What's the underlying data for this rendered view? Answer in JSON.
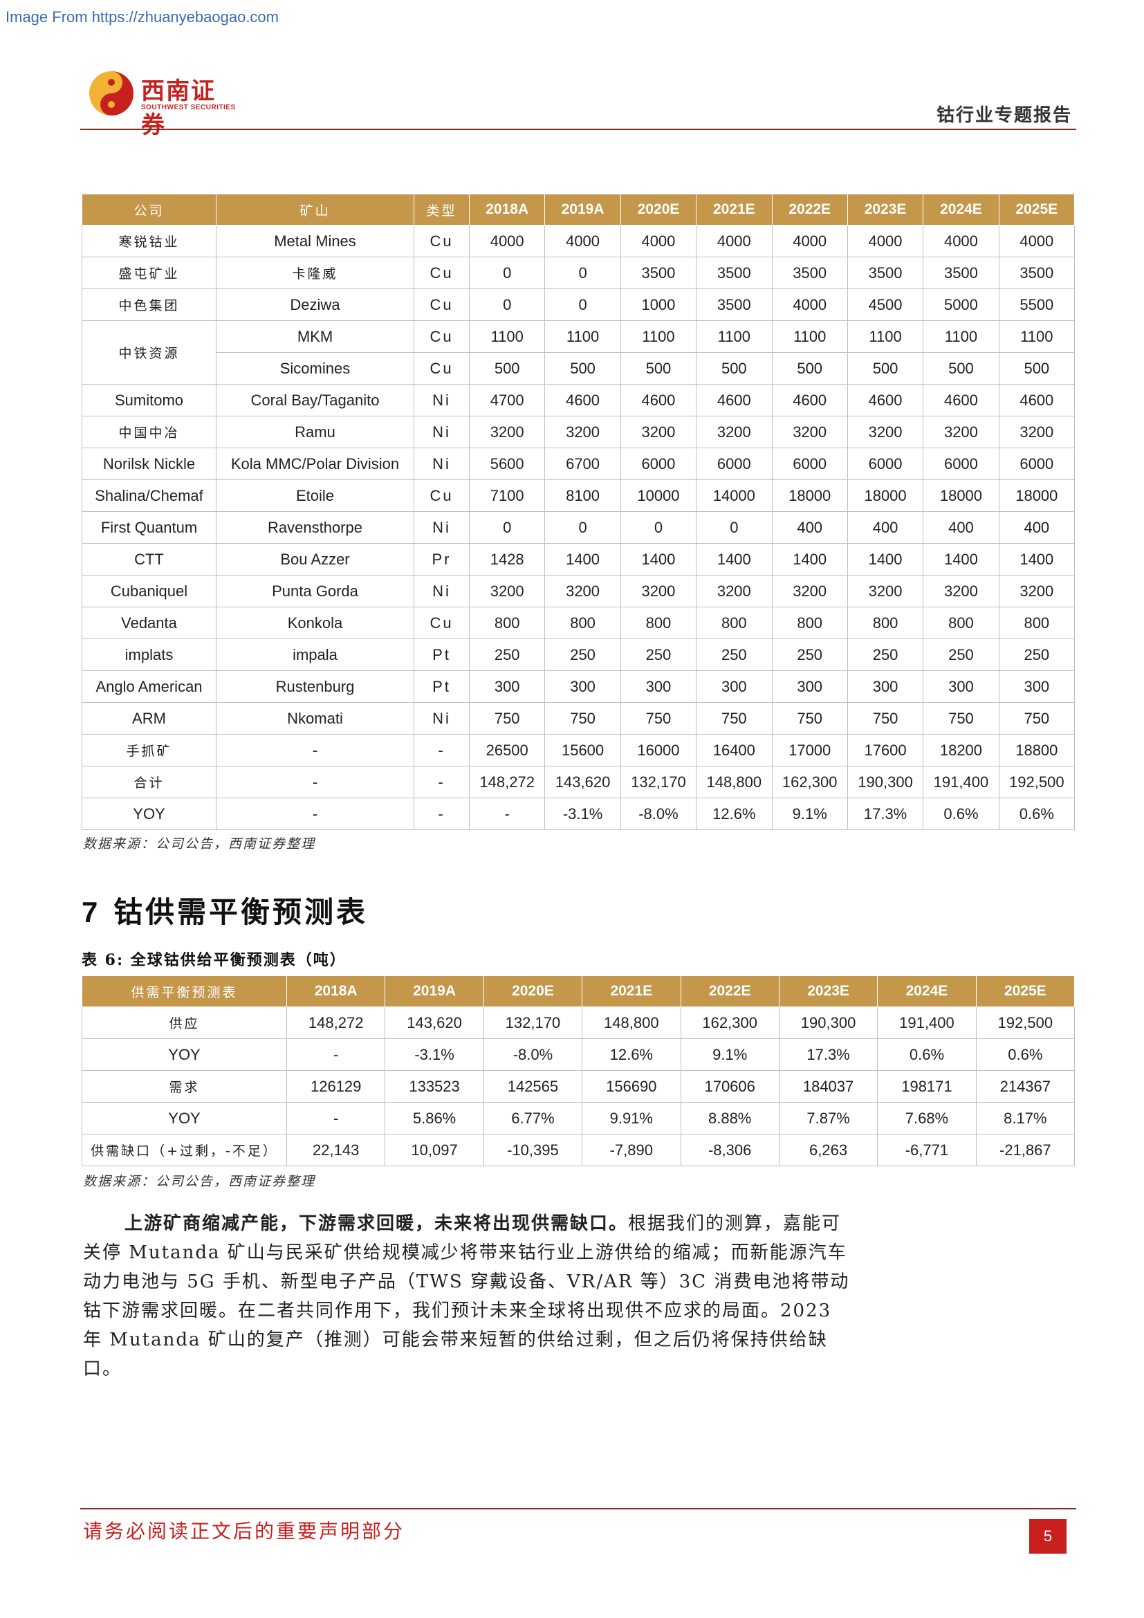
{
  "watermark": "Image From https://zhuanyebaogao.com",
  "header": {
    "logo_cn": "西南证券",
    "logo_en": "SOUTHWEST SECURITIES",
    "report_title": "钴行业专题报告"
  },
  "mine_table": {
    "headers": [
      "公司",
      "矿山",
      "类型",
      "2018A",
      "2019A",
      "2020E",
      "2021E",
      "2022E",
      "2023E",
      "2024E",
      "2025E"
    ],
    "rows": [
      {
        "company": "寒锐钴业",
        "mine": "Metal Mines",
        "type": "Cu",
        "values": [
          "4000",
          "4000",
          "4000",
          "4000",
          "4000",
          "4000",
          "4000",
          "4000"
        ]
      },
      {
        "company": "盛屯矿业",
        "mine": "卡隆威",
        "type": "Cu",
        "values": [
          "0",
          "0",
          "3500",
          "3500",
          "3500",
          "3500",
          "3500",
          "3500"
        ]
      },
      {
        "company": "中色集团",
        "mine": "Deziwa",
        "type": "Cu",
        "values": [
          "0",
          "0",
          "1000",
          "3500",
          "4000",
          "4500",
          "5000",
          "5500"
        ]
      },
      {
        "company": "中铁资源",
        "mine": "MKM",
        "type": "Cu",
        "values": [
          "1100",
          "1100",
          "1100",
          "1100",
          "1100",
          "1100",
          "1100",
          "1100"
        ]
      },
      {
        "company": "",
        "mine": "Sicomines",
        "type": "Cu",
        "values": [
          "500",
          "500",
          "500",
          "500",
          "500",
          "500",
          "500",
          "500"
        ]
      },
      {
        "company": "Sumitomo",
        "mine": "Coral Bay/Taganito",
        "type": "Ni",
        "values": [
          "4700",
          "4600",
          "4600",
          "4600",
          "4600",
          "4600",
          "4600",
          "4600"
        ]
      },
      {
        "company": "中国中冶",
        "mine": "Ramu",
        "type": "Ni",
        "values": [
          "3200",
          "3200",
          "3200",
          "3200",
          "3200",
          "3200",
          "3200",
          "3200"
        ]
      },
      {
        "company": "Norilsk Nickle",
        "mine": "Kola MMC/Polar Division",
        "type": "Ni",
        "values": [
          "5600",
          "6700",
          "6000",
          "6000",
          "6000",
          "6000",
          "6000",
          "6000"
        ]
      },
      {
        "company": "Shalina/Chemaf",
        "mine": "Etoile",
        "type": "Cu",
        "values": [
          "7100",
          "8100",
          "10000",
          "14000",
          "18000",
          "18000",
          "18000",
          "18000"
        ]
      },
      {
        "company": "First Quantum",
        "mine": "Ravensthorpe",
        "type": "Ni",
        "values": [
          "0",
          "0",
          "0",
          "0",
          "400",
          "400",
          "400",
          "400"
        ]
      },
      {
        "company": "CTT",
        "mine": "Bou Azzer",
        "type": "Pr",
        "values": [
          "1428",
          "1400",
          "1400",
          "1400",
          "1400",
          "1400",
          "1400",
          "1400"
        ]
      },
      {
        "company": "Cubaniquel",
        "mine": "Punta Gorda",
        "type": "Ni",
        "values": [
          "3200",
          "3200",
          "3200",
          "3200",
          "3200",
          "3200",
          "3200",
          "3200"
        ]
      },
      {
        "company": "Vedanta",
        "mine": "Konkola",
        "type": "Cu",
        "values": [
          "800",
          "800",
          "800",
          "800",
          "800",
          "800",
          "800",
          "800"
        ]
      },
      {
        "company": "implats",
        "mine": "impala",
        "type": "Pt",
        "values": [
          "250",
          "250",
          "250",
          "250",
          "250",
          "250",
          "250",
          "250"
        ]
      },
      {
        "company": "Anglo American",
        "mine": "Rustenburg",
        "type": "Pt",
        "values": [
          "300",
          "300",
          "300",
          "300",
          "300",
          "300",
          "300",
          "300"
        ]
      },
      {
        "company": "ARM",
        "mine": "Nkomati",
        "type": "Ni",
        "values": [
          "750",
          "750",
          "750",
          "750",
          "750",
          "750",
          "750",
          "750"
        ]
      },
      {
        "company": "手抓矿",
        "mine": "-",
        "type": "-",
        "values": [
          "26500",
          "15600",
          "16000",
          "16400",
          "17000",
          "17600",
          "18200",
          "18800"
        ]
      },
      {
        "company": "合计",
        "mine": "-",
        "type": "-",
        "values": [
          "148,272",
          "143,620",
          "132,170",
          "148,800",
          "162,300",
          "190,300",
          "191,400",
          "192,500"
        ]
      },
      {
        "company": "YOY",
        "mine": "-",
        "type": "-",
        "values": [
          "-",
          "-3.1%",
          "-8.0%",
          "12.6%",
          "9.1%",
          "17.3%",
          "0.6%",
          "0.6%"
        ]
      }
    ],
    "source": "数据来源：公司公告，西南证券整理"
  },
  "section": {
    "number": "7",
    "title": "钴供需平衡预测表"
  },
  "balance_table": {
    "caption_label": "表 6:",
    "caption_text": "全球钴供给平衡预测表（吨）",
    "headers": [
      "供需平衡预测表",
      "2018A",
      "2019A",
      "2020E",
      "2021E",
      "2022E",
      "2023E",
      "2024E",
      "2025E"
    ],
    "rows": [
      {
        "label": "供应",
        "values": [
          "148,272",
          "143,620",
          "132,170",
          "148,800",
          "162,300",
          "190,300",
          "191,400",
          "192,500"
        ]
      },
      {
        "label": "YOY",
        "values": [
          "-",
          "-3.1%",
          "-8.0%",
          "12.6%",
          "9.1%",
          "17.3%",
          "0.6%",
          "0.6%"
        ]
      },
      {
        "label": "需求",
        "values": [
          "126129",
          "133523",
          "142565",
          "156690",
          "170606",
          "184037",
          "198171",
          "214367"
        ]
      },
      {
        "label": "YOY",
        "values": [
          "-",
          "5.86%",
          "6.77%",
          "9.91%",
          "8.88%",
          "7.87%",
          "7.68%",
          "8.17%"
        ]
      },
      {
        "label": "供需缺口（+过剩，-不足）",
        "values": [
          "22,143",
          "10,097",
          "-10,395",
          "-7,890",
          "-8,306",
          "6,263",
          "-6,771",
          "-21,867"
        ]
      }
    ],
    "source": "数据来源：公司公告，西南证券整理"
  },
  "paragraph": {
    "lead": "上游矿商缩减产能，下游需求回暖，未来将出现供需缺口。",
    "body": "根据我们的测算，嘉能可关停 Mutanda 矿山与民采矿供给规模减少将带来钴行业上游供给的缩减；而新能源汽车动力电池与 5G 手机、新型电子产品（TWS 穿戴设备、VR/AR 等）3C 消费电池将带动钴下游需求回暖。在二者共同作用下，我们预计未来全球将出现供不应求的局面。2023 年 Mutanda 矿山的复产（推测）可能会带来短暂的供给过剩，但之后仍将保持供给缺口。"
  },
  "footer": {
    "note": "请务必阅读正文后的重要声明部分",
    "page_number": "5"
  },
  "colors": {
    "table_header": "#c4974a",
    "brand_red": "#c8201e",
    "rule": "#8b2a1e"
  }
}
